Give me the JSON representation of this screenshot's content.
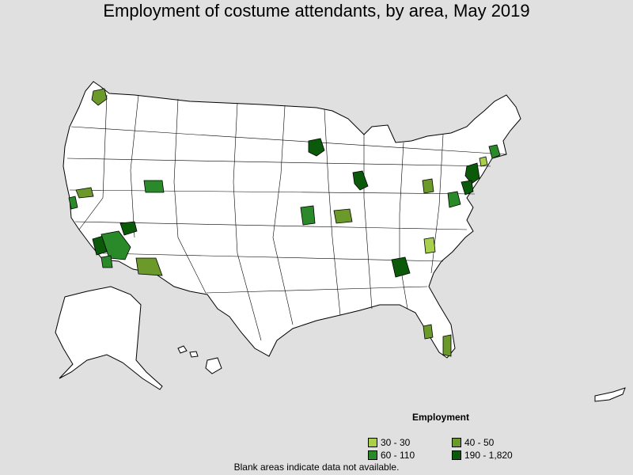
{
  "title": "Employment of costume attendants, by area, May 2019",
  "legend": {
    "title": "Employment",
    "items": [
      {
        "label": "30 - 30",
        "color": "#a8d04a"
      },
      {
        "label": "40 - 50",
        "color": "#6b9a2a"
      },
      {
        "label": "60 - 110",
        "color": "#2a8a2a"
      },
      {
        "label": "190 - 1,820",
        "color": "#0a5a0a"
      }
    ]
  },
  "footnote": "Blank areas indicate data not available.",
  "colors": {
    "background": "#e0e0e0",
    "land": "#ffffff",
    "border": "#000000"
  }
}
